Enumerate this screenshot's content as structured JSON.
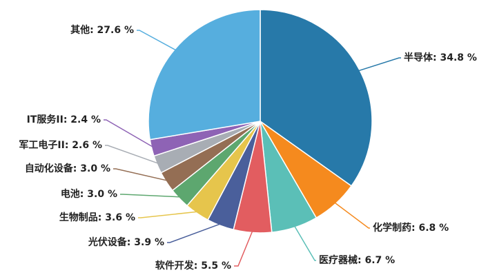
{
  "chart_data": {
    "type": "pie",
    "title": "",
    "unit": "%",
    "slices": [
      {
        "label": "半导体: 34.8 %",
        "name": "半导体",
        "value": 34.8,
        "color": "#2779a9"
      },
      {
        "label": "化学制药: 6.8 %",
        "name": "化学制药",
        "value": 6.8,
        "color": "#f58a1e"
      },
      {
        "label": "医疗器械: 6.7 %",
        "name": "医疗器械",
        "value": 6.7,
        "color": "#5bbfb7"
      },
      {
        "label": "软件开发: 5.5 %",
        "name": "软件开发",
        "value": 5.5,
        "color": "#e25d60"
      },
      {
        "label": "光伏设备: 3.9 %",
        "name": "光伏设备",
        "value": 3.9,
        "color": "#4a5f9b"
      },
      {
        "label": "生物制品: 3.6 %",
        "name": "生物制品",
        "value": 3.6,
        "color": "#e6c54c"
      },
      {
        "label": "电池: 3.0 %",
        "name": "电池",
        "value": 3.0,
        "color": "#5da76f"
      },
      {
        "label": "自动化设备: 3.0 %",
        "name": "自动化设备",
        "value": 3.0,
        "color": "#946e54"
      },
      {
        "label": "军工电子II: 2.6 %",
        "name": "军工电子II",
        "value": 2.6,
        "color": "#a8adb4"
      },
      {
        "label": "IT服务II: 2.4 %",
        "name": "IT服务II",
        "value": 2.4,
        "color": "#8e63b5"
      },
      {
        "label": "其他: 27.6 %",
        "name": "其他",
        "value": 27.6,
        "color": "#56aede"
      }
    ]
  }
}
